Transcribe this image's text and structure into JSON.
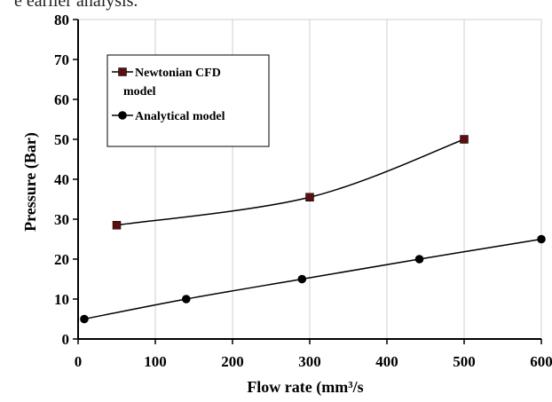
{
  "page": {
    "top_text": "e earlier analysis."
  },
  "chart_data": {
    "type": "line",
    "xlabel": "Flow rate (mm³/s",
    "ylabel": "Pressure (Bar)",
    "xlim": [
      0,
      600
    ],
    "ylim": [
      0,
      80
    ],
    "xticks": [
      0,
      100,
      200,
      300,
      400,
      500,
      600
    ],
    "yticks": [
      0,
      10,
      20,
      30,
      40,
      50,
      60,
      70,
      80
    ],
    "grid": "vertical",
    "legend_placement": "top-left",
    "series": [
      {
        "name": "Newtonian CFD model",
        "marker": "square",
        "marker_color": "#5a0f10",
        "line_color": "#000000",
        "x": [
          50,
          300,
          500
        ],
        "y": [
          28.5,
          35.5,
          50
        ]
      },
      {
        "name": "Analytical model",
        "marker": "circle",
        "marker_color": "#000000",
        "line_color": "#000000",
        "x": [
          8,
          140,
          290,
          442,
          600
        ],
        "y": [
          5,
          10,
          15,
          20,
          25
        ]
      }
    ]
  }
}
